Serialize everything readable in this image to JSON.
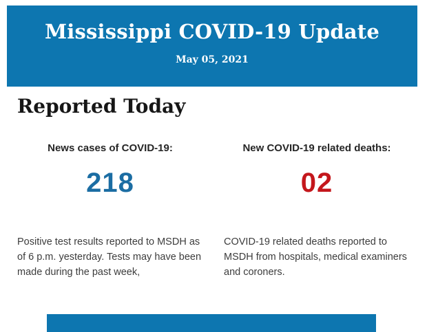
{
  "header": {
    "title": "Mississippi COVID-19 Update",
    "date": "May 05, 2021",
    "bg_color": "#0d76b0",
    "text_color": "#ffffff"
  },
  "section": {
    "heading": "Reported Today"
  },
  "stats": [
    {
      "label": "News cases of COVID-19:",
      "value": "218",
      "value_color": "#1b6da3",
      "description": "Positive test results reported to MSDH as of 6 p.m. yesterday. Tests may have been made during the past week,"
    },
    {
      "label": "New COVID-19 related deaths:",
      "value": "02",
      "value_color": "#c4171c",
      "description": "COVID-19 related deaths reported to MSDH from hospitals, medical examiners and coroners."
    }
  ],
  "footer": {
    "bg_color": "#0d76b0"
  }
}
